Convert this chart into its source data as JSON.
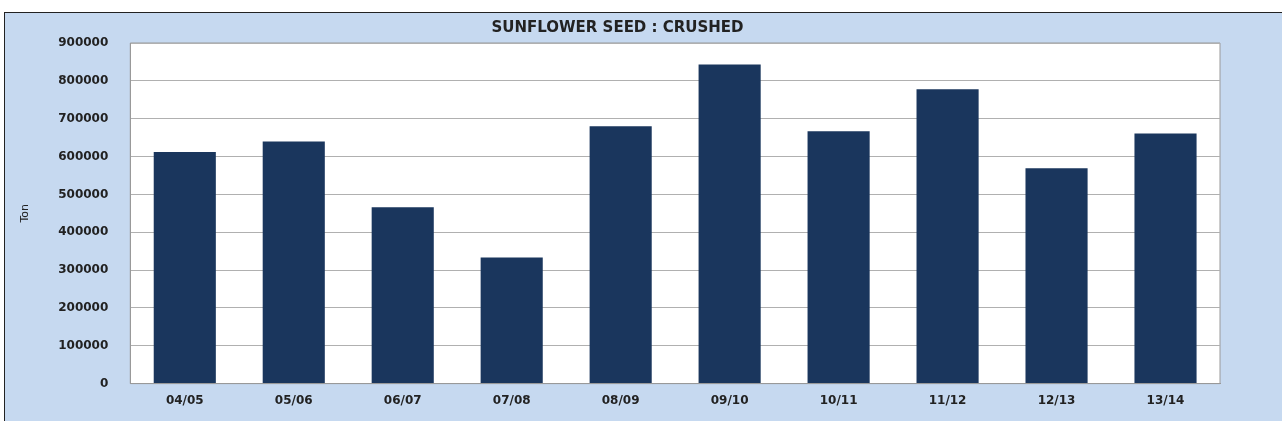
{
  "chart_data": {
    "type": "bar",
    "title": "SUNFLOWER SEED : CRUSHED",
    "ylabel": "Ton",
    "categories": [
      "04/05",
      "05/06",
      "06/07",
      "07/08",
      "08/09",
      "09/10",
      "10/11",
      "11/12",
      "12/13",
      "13/14"
    ],
    "values": [
      612000,
      640000,
      466000,
      333000,
      680000,
      843000,
      667000,
      778000,
      569000,
      661000
    ],
    "color": "#1a365d",
    "ylim": [
      0,
      900000
    ],
    "yticks": [
      0,
      100000,
      200000,
      300000,
      400000,
      500000,
      600000,
      700000,
      800000,
      900000
    ],
    "grid": "y",
    "legend": false
  }
}
